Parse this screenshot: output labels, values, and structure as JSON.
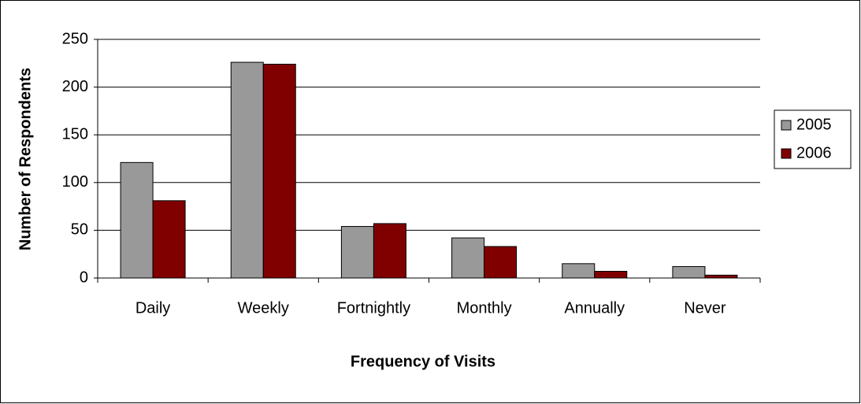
{
  "chart_data": {
    "type": "bar",
    "x_label": "Frequency of Visits",
    "y_label": "Number of Respondents",
    "categories": [
      "Daily",
      "Weekly",
      "Fortnightly",
      "Monthly",
      "Annually",
      "Never"
    ],
    "series": [
      {
        "name": "2005",
        "color": "#999999",
        "values": [
          121,
          226,
          54,
          42,
          15,
          12
        ]
      },
      {
        "name": "2006",
        "color": "#800000",
        "values": [
          81,
          224,
          57,
          33,
          7,
          3
        ]
      }
    ],
    "ylim": [
      0,
      250
    ],
    "yticks": [
      0,
      50,
      100,
      150,
      200,
      250
    ],
    "grid": true,
    "legend": "right"
  }
}
